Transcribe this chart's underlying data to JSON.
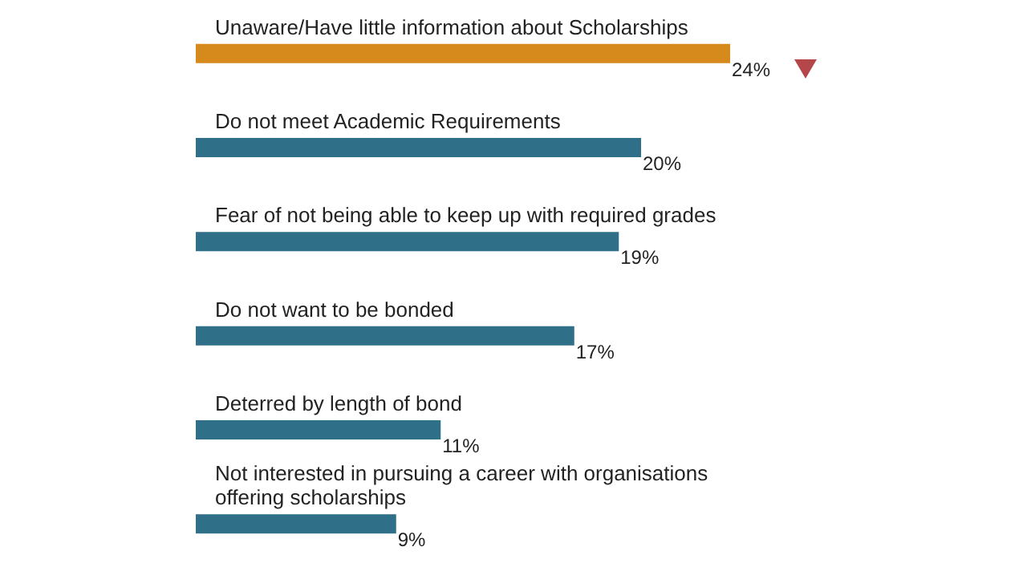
{
  "chart_data": {
    "type": "bar",
    "orientation": "horizontal",
    "categories": [
      "Unaware/Have little information about Scholarships",
      "Do not meet Academic Requirements",
      "Fear of not being able to keep up with required grades",
      "Do not want to be bonded",
      "Deterred by length of bond",
      "Not interested in pursuing a career with organisations offering scholarships"
    ],
    "values": [
      24,
      20,
      19,
      17,
      11,
      9
    ],
    "colors": [
      "#d68a1c",
      "#2f6f87",
      "#2f6f87",
      "#2f6f87",
      "#2f6f87",
      "#2f6f87"
    ],
    "value_labels": [
      "24%",
      "20%",
      "19%",
      "17%",
      "11%",
      "9%"
    ],
    "grid": false
  }
}
